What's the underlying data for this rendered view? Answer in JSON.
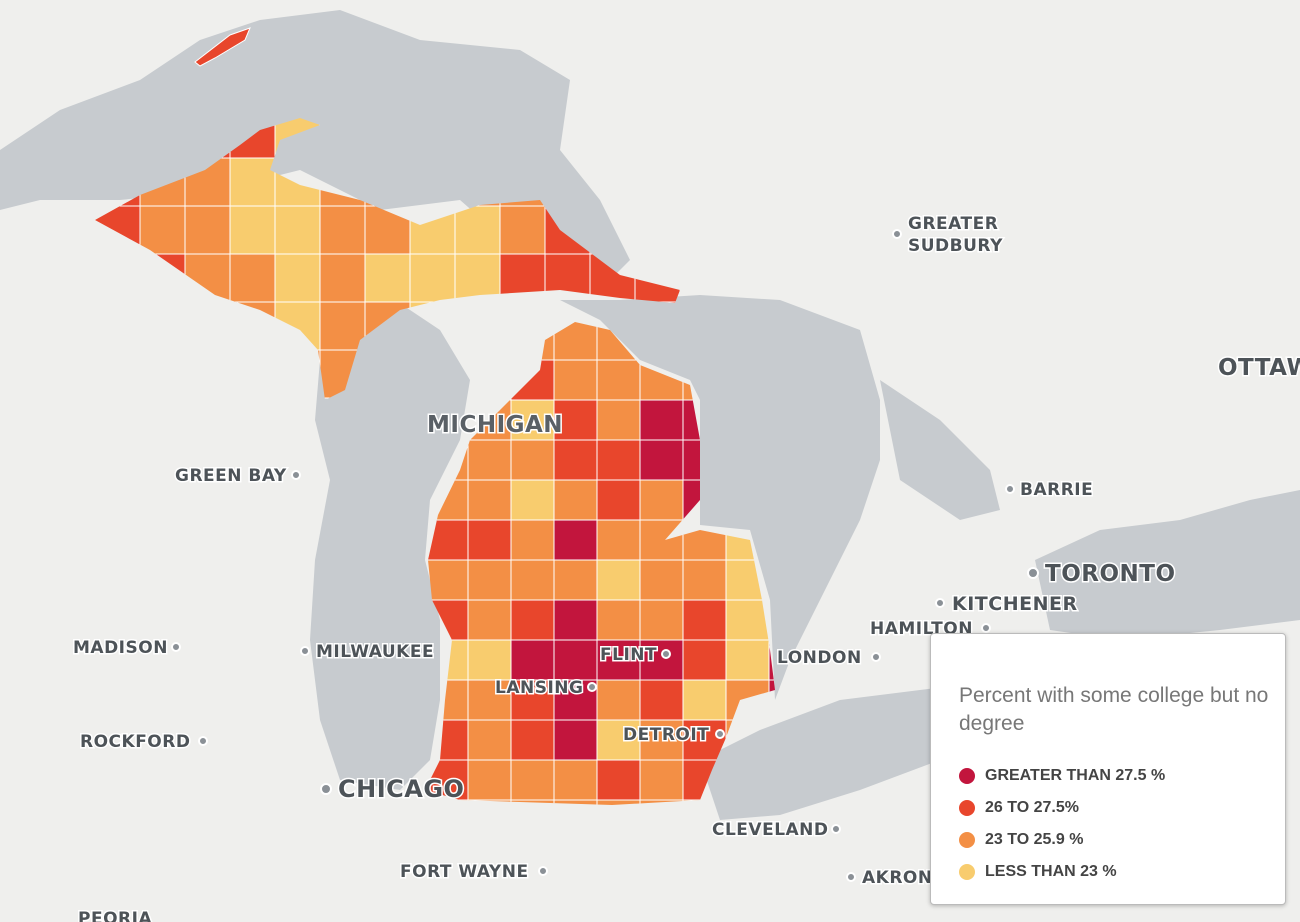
{
  "map_labels": {
    "greater_sudbury": [
      "GREATER",
      "SUDBURY"
    ],
    "ottawa": "OTTAWA",
    "michigan": "MICHIGAN",
    "green_bay": "GREEN BAY",
    "barrie": "BARRIE",
    "toronto": "TORONTO",
    "kitchener": "KITCHENER",
    "hamilton": "HAMILTON",
    "madison": "MADISON",
    "milwaukee": "MILWAUKEE",
    "flint": "FLINT",
    "london": "LONDON",
    "lansing": "LANSING",
    "detroit": "DETROIT",
    "rockford": "ROCKFORD",
    "chicago": "CHICAGO",
    "cleveland": "CLEVELAND",
    "fort_wayne": "FORT WAYNE",
    "akron": "AKRON",
    "peoria": "PEORIA"
  },
  "legend": {
    "title": "Percent with some college but no degree",
    "items": [
      {
        "label": "GREATER THAN 27.5 %",
        "color": "#c2153d"
      },
      {
        "label": "26 TO 27.5%",
        "color": "#e8462c"
      },
      {
        "label": "23 TO 25.9 %",
        "color": "#f38f45"
      },
      {
        "label": "LESS THAN 23 %",
        "color": "#f8cc6e"
      }
    ]
  }
}
